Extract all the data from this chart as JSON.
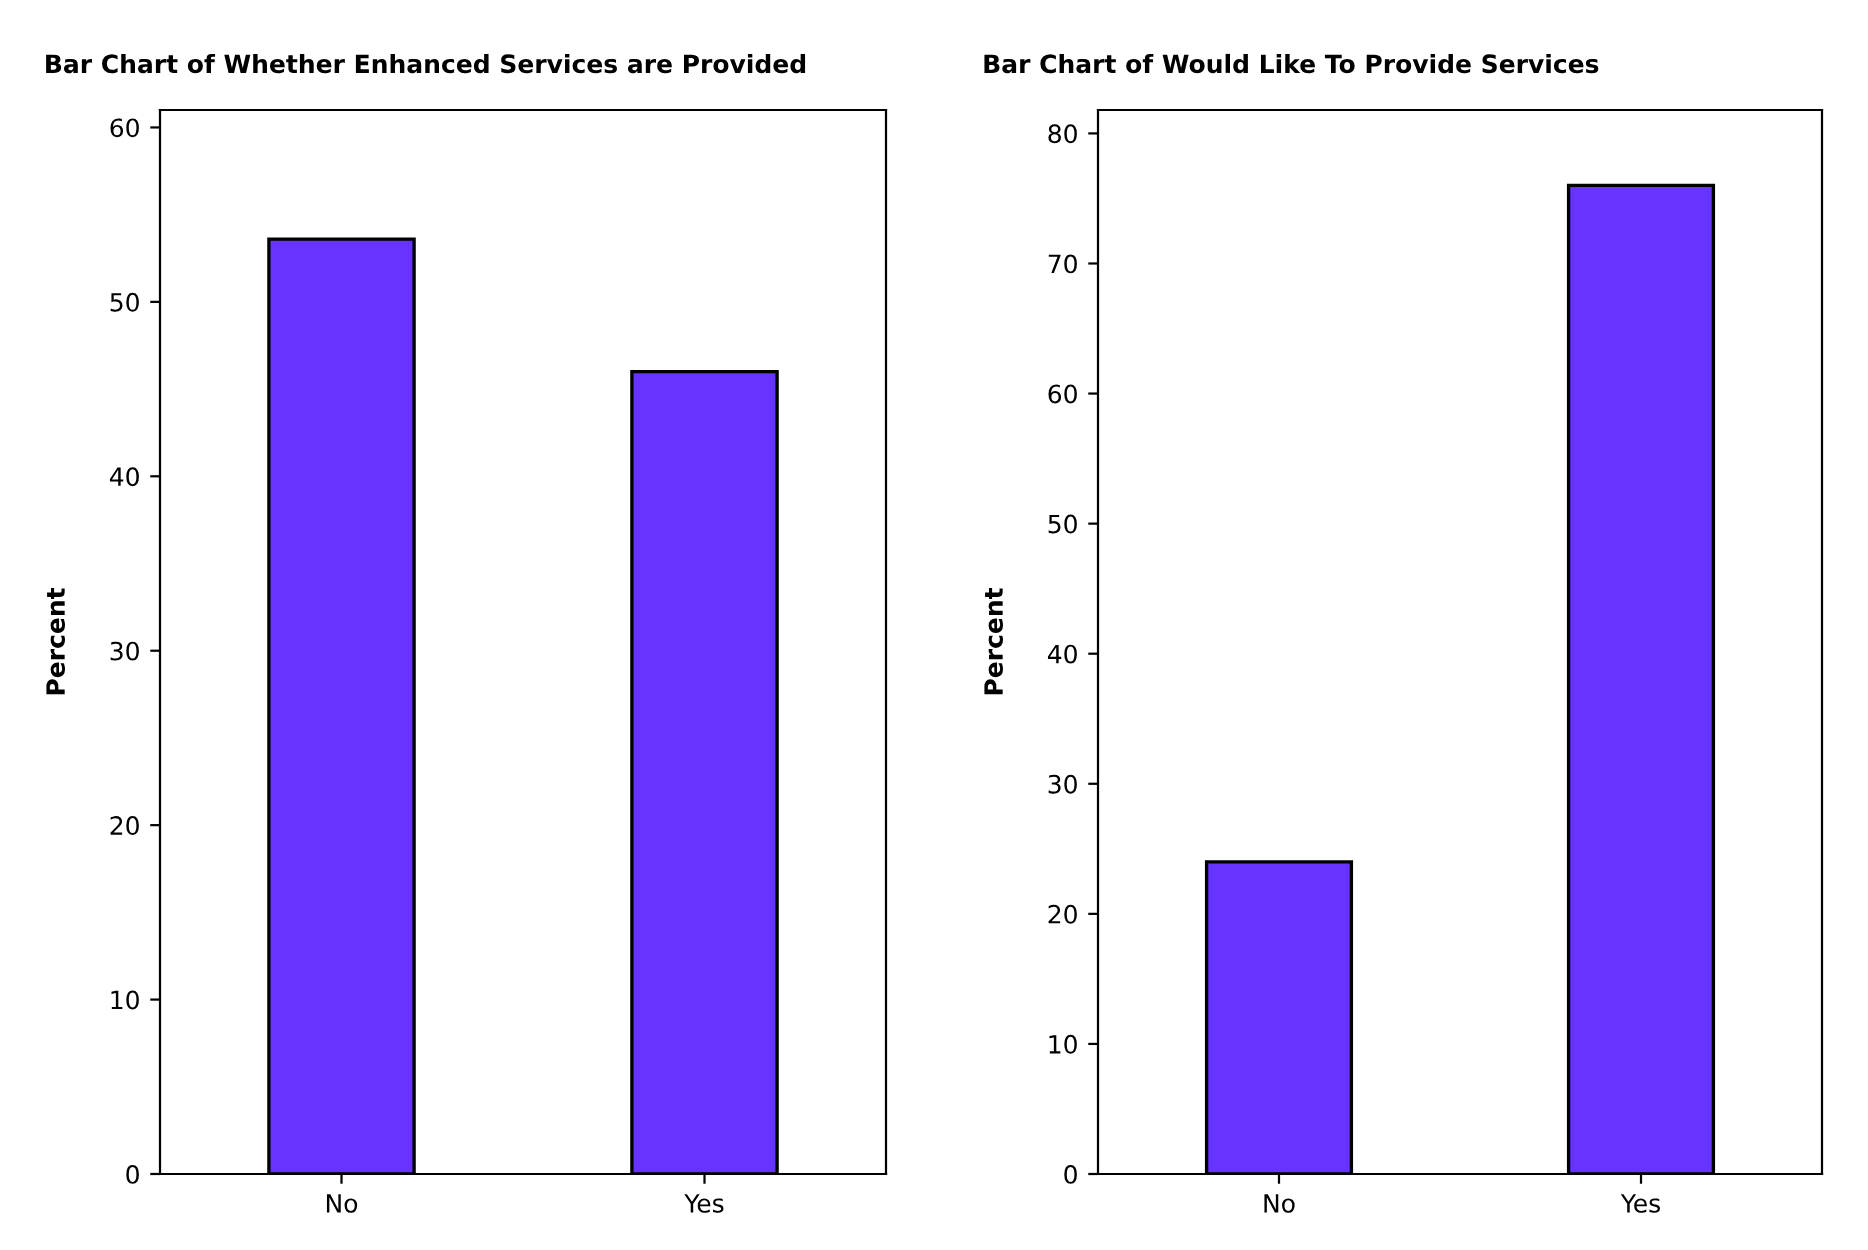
{
  "chart_data": [
    {
      "type": "bar",
      "title": "Bar Chart of Whether Enhanced Services are Provided",
      "ylabel": "Percent",
      "categories": [
        "No",
        "Yes"
      ],
      "values": [
        53.6,
        46.0
      ],
      "color": "#6633ff",
      "ylim": [
        0,
        61
      ],
      "yticks": [
        0,
        10,
        20,
        30,
        40,
        50,
        60
      ],
      "grid": false
    },
    {
      "type": "bar",
      "title": "Bar Chart of Would Like To Provide Services",
      "ylabel": "Percent",
      "categories": [
        "No",
        "Yes"
      ],
      "values": [
        24.0,
        76.0
      ],
      "color": "#6633ff",
      "ylim": [
        0,
        81.8
      ],
      "yticks": [
        0,
        10,
        20,
        30,
        40,
        50,
        60,
        70,
        80
      ],
      "grid": false
    }
  ]
}
